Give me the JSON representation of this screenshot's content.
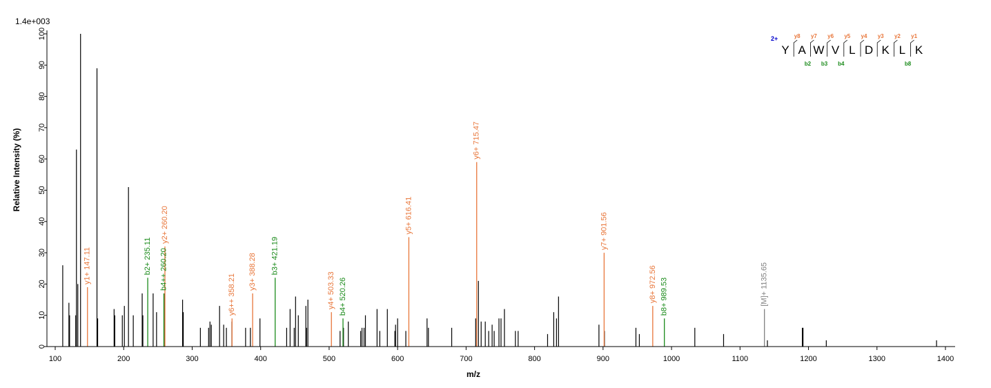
{
  "chart_data": {
    "type": "bar",
    "title": "",
    "scale_label": "1.4e+003",
    "xlabel": "m/z",
    "ylabel": "Relative   Intensity (%)",
    "xlim": [
      95,
      1410
    ],
    "ylim": [
      0,
      100
    ],
    "x_ticks": [
      100,
      200,
      300,
      400,
      500,
      600,
      700,
      800,
      900,
      1000,
      1100,
      1200,
      1300,
      1400
    ],
    "y_ticks": [
      0,
      10,
      20,
      30,
      40,
      50,
      60,
      70,
      80,
      90,
      100
    ],
    "colors": {
      "unassigned": "#000000",
      "y_ion": "#e8763a",
      "b_ion": "#1a8a1a",
      "precursor": "#808080",
      "charge": "#0000cc"
    },
    "peaks": [
      [
        111,
        26
      ],
      [
        120,
        14
      ],
      [
        121,
        10
      ],
      [
        130,
        10
      ],
      [
        131,
        63
      ],
      [
        133,
        20
      ],
      [
        137,
        100
      ],
      [
        161,
        89
      ],
      [
        162,
        9
      ],
      [
        186,
        12
      ],
      [
        187,
        10
      ],
      [
        198,
        10
      ],
      [
        201,
        13
      ],
      [
        207,
        51
      ],
      [
        214,
        10
      ],
      [
        227,
        17
      ],
      [
        228,
        10
      ],
      [
        243,
        17
      ],
      [
        248,
        11
      ],
      [
        259,
        17
      ],
      [
        286,
        15
      ],
      [
        287,
        11
      ],
      [
        312,
        6
      ],
      [
        324,
        6
      ],
      [
        326,
        8
      ],
      [
        328,
        7
      ],
      [
        340,
        13
      ],
      [
        346,
        7
      ],
      [
        350,
        6
      ],
      [
        358,
        8
      ],
      [
        378,
        6
      ],
      [
        385,
        6
      ],
      [
        399,
        9
      ],
      [
        438,
        6
      ],
      [
        443,
        12
      ],
      [
        449,
        6
      ],
      [
        451,
        16
      ],
      [
        455,
        10
      ],
      [
        466,
        13
      ],
      [
        467,
        6
      ],
      [
        469,
        15
      ],
      [
        516,
        5
      ],
      [
        521,
        6
      ],
      [
        528,
        8
      ],
      [
        546,
        5
      ],
      [
        548,
        6
      ],
      [
        551,
        6
      ],
      [
        553,
        10
      ],
      [
        570,
        12
      ],
      [
        574,
        5
      ],
      [
        585,
        12
      ],
      [
        596,
        5
      ],
      [
        597,
        7
      ],
      [
        600,
        9
      ],
      [
        612,
        5
      ],
      [
        643,
        9
      ],
      [
        645,
        6
      ],
      [
        679,
        6
      ],
      [
        714,
        9
      ],
      [
        718,
        21
      ],
      [
        722,
        8
      ],
      [
        728,
        8
      ],
      [
        733,
        5
      ],
      [
        738,
        7
      ],
      [
        741,
        5
      ],
      [
        748,
        9
      ],
      [
        751,
        9
      ],
      [
        756,
        12
      ],
      [
        772,
        5
      ],
      [
        776,
        5
      ],
      [
        819,
        4
      ],
      [
        828,
        11
      ],
      [
        832,
        9
      ],
      [
        835,
        16
      ],
      [
        894,
        7
      ],
      [
        902,
        5
      ],
      [
        948,
        6
      ],
      [
        953,
        4
      ],
      [
        1034,
        6
      ],
      [
        1076,
        4
      ],
      [
        1140,
        2
      ],
      [
        1191,
        6
      ],
      [
        1192,
        6
      ],
      [
        1226,
        2
      ],
      [
        1387,
        2
      ]
    ],
    "annotated_peaks": [
      {
        "x": 147.11,
        "y": 19,
        "ion": "y",
        "label": "y1+ 147.11"
      },
      {
        "x": 235.11,
        "y": 22,
        "ion": "b",
        "label": "b2+ 235.11"
      },
      {
        "x": 260.2,
        "y": 17,
        "ion": "b",
        "label": "b4++ 260.20"
      },
      {
        "x": 260.2,
        "y": 32,
        "ion": "y",
        "label": "y2+ 260.20"
      },
      {
        "x": 358.21,
        "y": 9,
        "ion": "y",
        "label": "y6++ 358.21"
      },
      {
        "x": 388.28,
        "y": 17,
        "ion": "y",
        "label": "y3+ 388.28"
      },
      {
        "x": 421.19,
        "y": 22,
        "ion": "b",
        "label": "b3+ 421.19"
      },
      {
        "x": 503.33,
        "y": 11,
        "ion": "y",
        "label": "y4+ 503.33"
      },
      {
        "x": 520.26,
        "y": 9,
        "ion": "b",
        "label": "b4+ 520.26"
      },
      {
        "x": 616.41,
        "y": 35,
        "ion": "y",
        "label": "y5+ 616.41"
      },
      {
        "x": 715.47,
        "y": 59,
        "ion": "y",
        "label": "y6+ 715.47"
      },
      {
        "x": 901.56,
        "y": 30,
        "ion": "y",
        "label": "y7+ 901.56"
      },
      {
        "x": 972.56,
        "y": 13,
        "ion": "y",
        "label": "y8+ 972.56"
      },
      {
        "x": 989.53,
        "y": 9,
        "ion": "b",
        "label": "b8+ 989.53"
      },
      {
        "x": 1135.65,
        "y": 12,
        "ion": "precursor",
        "label": "[M]+ 1135.65"
      }
    ],
    "sequence": {
      "charge": "2+",
      "residues": [
        "Y",
        "A",
        "W",
        "V",
        "L",
        "D",
        "K",
        "L",
        "K"
      ],
      "y_labels": [
        "y8",
        "y7",
        "y6",
        "y5",
        "y4",
        "y3",
        "y2",
        "y1"
      ],
      "y_breaks": [
        1,
        2,
        3,
        4,
        5,
        6,
        7,
        8
      ],
      "b_labels": [
        "b2",
        "b3",
        "b4",
        "b8"
      ],
      "b_breaks": [
        2,
        3,
        4,
        8
      ]
    }
  }
}
